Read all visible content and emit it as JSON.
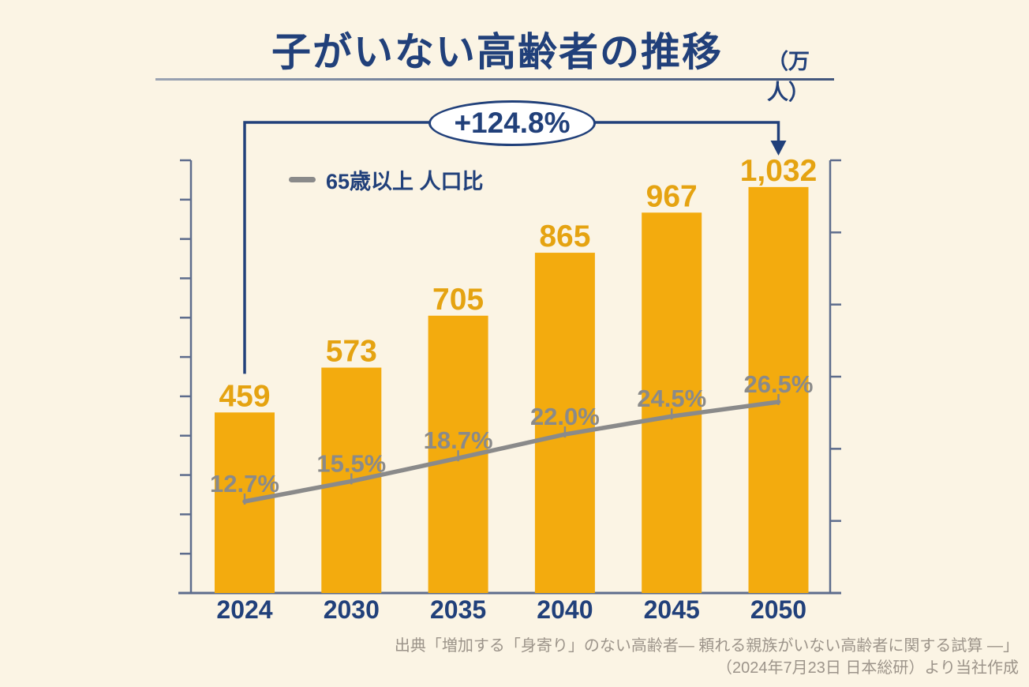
{
  "title": {
    "text": "子がいない高齢者の推移",
    "unit": "（万人）"
  },
  "annotation": {
    "growth_label": "+124.8%"
  },
  "legend": {
    "line_label": "65歳以上 人口比"
  },
  "source": {
    "line1": "出典「増加する「身寄り」のない高齢者— 頼れる親族がいない高齢者に関する試算 —」",
    "line2": "（2024年7月23日 日本総研）より当社作成"
  },
  "colors": {
    "background": "#FBF4E4",
    "bar": "#F3AB0E",
    "bar_label": "#E5A311",
    "navy": "#21407A",
    "line_gray": "#8A8A8A",
    "axis": "#5D6C8C",
    "source_text": "#9C948A",
    "annotation_fill": "#FFFFFF"
  },
  "chart_data": {
    "type": "bar",
    "title": "子がいない高齢者の推移",
    "unit": "万人",
    "categories": [
      "2024",
      "2030",
      "2035",
      "2040",
      "2045",
      "2050"
    ],
    "series": [
      {
        "name": "子がいない高齢者（万人）",
        "type": "bar",
        "axis": "left",
        "values": [
          459,
          573,
          705,
          865,
          967,
          1032
        ],
        "labels": [
          "459",
          "573",
          "705",
          "865",
          "967",
          "1,032"
        ]
      },
      {
        "name": "65歳以上 人口比",
        "type": "line",
        "axis": "right",
        "values": [
          12.7,
          15.5,
          18.7,
          22.0,
          24.5,
          26.5
        ],
        "labels": [
          "12.7%",
          "15.5%",
          "18.7%",
          "22.0%",
          "24.5%",
          "26.5%"
        ]
      }
    ],
    "left_axis": {
      "min": 0,
      "max": 1100,
      "tick_step": 100,
      "tick_labels_shown": false
    },
    "right_axis": {
      "min": 0,
      "max": 60,
      "tick_step": 10,
      "tick_labels_shown": false
    },
    "grid": false,
    "legend_position": "top-left-inside",
    "annotation": {
      "text": "+124.8%",
      "from_category": "2024",
      "to_category": "2050"
    }
  }
}
